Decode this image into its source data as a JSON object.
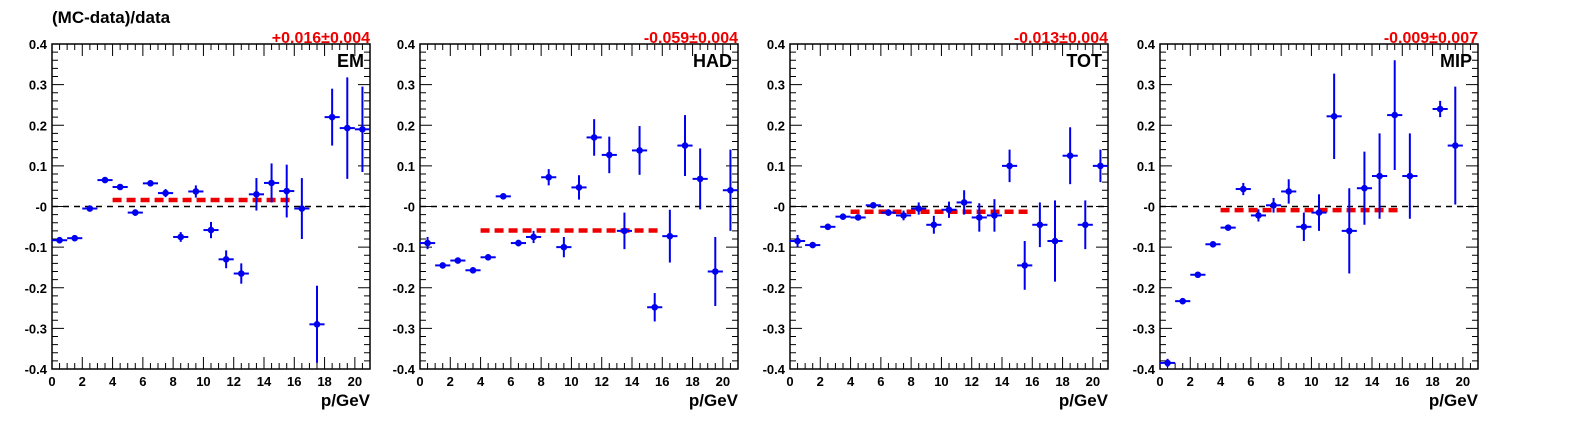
{
  "figure": {
    "title": "(MC-data)/data"
  },
  "chart_data": [
    {
      "type": "scatter",
      "panel_label": "EM",
      "fit_text": "+0.016±0.004",
      "fit_value": 0.016,
      "fit_range": [
        4,
        16
      ],
      "xlabel": "p/GeV",
      "ylabel": "",
      "xlim": [
        0,
        21
      ],
      "ylim": [
        -0.4,
        0.4
      ],
      "xticks": [
        "0",
        "2",
        "4",
        "6",
        "8",
        "10",
        "12",
        "14",
        "16",
        "18",
        "20"
      ],
      "yticks": [
        "-0.4",
        "-0.3",
        "-0.2",
        "-0.1",
        "-0",
        "0.1",
        "0.2",
        "0.3",
        "0.4"
      ],
      "reference_line": 0,
      "grid": false,
      "points": [
        {
          "x": 0.5,
          "y": -0.083,
          "err": 0.008
        },
        {
          "x": 1.5,
          "y": -0.078,
          "err": 0.006
        },
        {
          "x": 2.5,
          "y": -0.005,
          "err": 0.005
        },
        {
          "x": 3.5,
          "y": 0.065,
          "err": 0.006
        },
        {
          "x": 4.5,
          "y": 0.048,
          "err": 0.007
        },
        {
          "x": 5.5,
          "y": -0.015,
          "err": 0.008
        },
        {
          "x": 6.5,
          "y": 0.057,
          "err": 0.007
        },
        {
          "x": 7.5,
          "y": 0.033,
          "err": 0.01
        },
        {
          "x": 8.5,
          "y": -0.075,
          "err": 0.012
        },
        {
          "x": 9.5,
          "y": 0.037,
          "err": 0.015
        },
        {
          "x": 10.5,
          "y": -0.058,
          "err": 0.02
        },
        {
          "x": 11.5,
          "y": -0.13,
          "err": 0.022
        },
        {
          "x": 12.5,
          "y": -0.165,
          "err": 0.025
        },
        {
          "x": 13.5,
          "y": 0.03,
          "err": 0.04
        },
        {
          "x": 14.5,
          "y": 0.058,
          "err": 0.048
        },
        {
          "x": 15.5,
          "y": 0.038,
          "err": 0.065
        },
        {
          "x": 16.5,
          "y": -0.005,
          "err": 0.075
        },
        {
          "x": 17.5,
          "y": -0.29,
          "err": 0.095
        },
        {
          "x": 18.5,
          "y": 0.22,
          "err": 0.07
        },
        {
          "x": 19.5,
          "y": 0.193,
          "err": 0.125
        },
        {
          "x": 20.5,
          "y": 0.19,
          "err": 0.105
        }
      ]
    },
    {
      "type": "scatter",
      "panel_label": "HAD",
      "fit_text": "-0.059±0.004",
      "fit_value": -0.059,
      "fit_range": [
        4,
        16
      ],
      "xlabel": "p/GeV",
      "ylabel": "",
      "xlim": [
        0,
        21
      ],
      "ylim": [
        -0.4,
        0.4
      ],
      "xticks": [
        "0",
        "2",
        "4",
        "6",
        "8",
        "10",
        "12",
        "14",
        "16",
        "18",
        "20"
      ],
      "yticks": [
        "-0.4",
        "-0.3",
        "-0.2",
        "-0.1",
        "-0",
        "0.1",
        "0.2",
        "0.3",
        "0.4"
      ],
      "reference_line": 0,
      "grid": false,
      "points": [
        {
          "x": 0.5,
          "y": -0.09,
          "err": 0.015
        },
        {
          "x": 1.5,
          "y": -0.145,
          "err": 0.006
        },
        {
          "x": 2.5,
          "y": -0.133,
          "err": 0.006
        },
        {
          "x": 3.5,
          "y": -0.157,
          "err": 0.007
        },
        {
          "x": 4.5,
          "y": -0.125,
          "err": 0.006
        },
        {
          "x": 5.5,
          "y": 0.025,
          "err": 0.006
        },
        {
          "x": 6.5,
          "y": -0.09,
          "err": 0.008
        },
        {
          "x": 7.5,
          "y": -0.075,
          "err": 0.015
        },
        {
          "x": 8.5,
          "y": 0.072,
          "err": 0.02
        },
        {
          "x": 9.5,
          "y": -0.1,
          "err": 0.025
        },
        {
          "x": 10.5,
          "y": 0.047,
          "err": 0.03
        },
        {
          "x": 11.5,
          "y": 0.17,
          "err": 0.045
        },
        {
          "x": 12.5,
          "y": 0.127,
          "err": 0.045
        },
        {
          "x": 13.5,
          "y": -0.06,
          "err": 0.045
        },
        {
          "x": 14.5,
          "y": 0.138,
          "err": 0.06
        },
        {
          "x": 15.5,
          "y": -0.248,
          "err": 0.035
        },
        {
          "x": 16.5,
          "y": -0.073,
          "err": 0.065
        },
        {
          "x": 17.5,
          "y": 0.15,
          "err": 0.075
        },
        {
          "x": 18.5,
          "y": 0.068,
          "err": 0.075
        },
        {
          "x": 19.5,
          "y": -0.16,
          "err": 0.085
        },
        {
          "x": 20.5,
          "y": 0.04,
          "err": 0.1
        }
      ]
    },
    {
      "type": "scatter",
      "panel_label": "TOT",
      "fit_text": "-0.013±0.004",
      "fit_value": -0.013,
      "fit_range": [
        4,
        16
      ],
      "xlabel": "p/GeV",
      "ylabel": "",
      "xlim": [
        0,
        21
      ],
      "ylim": [
        -0.4,
        0.4
      ],
      "xticks": [
        "0",
        "2",
        "4",
        "6",
        "8",
        "10",
        "12",
        "14",
        "16",
        "18",
        "20"
      ],
      "yticks": [
        "-0.4",
        "-0.3",
        "-0.2",
        "-0.1",
        "-0",
        "0.1",
        "0.2",
        "0.3",
        "0.4"
      ],
      "reference_line": 0,
      "grid": false,
      "points": [
        {
          "x": 0.5,
          "y": -0.085,
          "err": 0.015
        },
        {
          "x": 1.5,
          "y": -0.095,
          "err": 0.006
        },
        {
          "x": 2.5,
          "y": -0.05,
          "err": 0.005
        },
        {
          "x": 3.5,
          "y": -0.025,
          "err": 0.005
        },
        {
          "x": 4.5,
          "y": -0.027,
          "err": 0.006
        },
        {
          "x": 5.5,
          "y": 0.003,
          "err": 0.006
        },
        {
          "x": 6.5,
          "y": -0.015,
          "err": 0.008
        },
        {
          "x": 7.5,
          "y": -0.022,
          "err": 0.012
        },
        {
          "x": 8.5,
          "y": -0.005,
          "err": 0.015
        },
        {
          "x": 9.5,
          "y": -0.045,
          "err": 0.022
        },
        {
          "x": 10.5,
          "y": -0.008,
          "err": 0.02
        },
        {
          "x": 11.5,
          "y": 0.01,
          "err": 0.03
        },
        {
          "x": 12.5,
          "y": -0.027,
          "err": 0.035
        },
        {
          "x": 13.5,
          "y": -0.022,
          "err": 0.04
        },
        {
          "x": 14.5,
          "y": 0.1,
          "err": 0.04
        },
        {
          "x": 15.5,
          "y": -0.145,
          "err": 0.06
        },
        {
          "x": 16.5,
          "y": -0.045,
          "err": 0.055
        },
        {
          "x": 17.5,
          "y": -0.085,
          "err": 0.1
        },
        {
          "x": 18.5,
          "y": 0.125,
          "err": 0.07
        },
        {
          "x": 19.5,
          "y": -0.045,
          "err": 0.06
        },
        {
          "x": 20.5,
          "y": 0.1,
          "err": 0.04
        }
      ]
    },
    {
      "type": "scatter",
      "panel_label": "MIP",
      "fit_text": "-0.009±0.007",
      "fit_value": -0.009,
      "fit_range": [
        4,
        16
      ],
      "xlabel": "p/GeV",
      "ylabel": "",
      "xlim": [
        0,
        21
      ],
      "ylim": [
        -0.4,
        0.4
      ],
      "xticks": [
        "0",
        "2",
        "4",
        "6",
        "8",
        "10",
        "12",
        "14",
        "16",
        "18",
        "20"
      ],
      "yticks": [
        "-0.4",
        "-0.3",
        "-0.2",
        "-0.1",
        "-0",
        "0.1",
        "0.2",
        "0.3",
        "0.4"
      ],
      "reference_line": 0,
      "grid": false,
      "points": [
        {
          "x": 0.5,
          "y": -0.385,
          "err": 0.01
        },
        {
          "x": 1.5,
          "y": -0.233,
          "err": 0.006
        },
        {
          "x": 2.5,
          "y": -0.168,
          "err": 0.006
        },
        {
          "x": 3.5,
          "y": -0.093,
          "err": 0.006
        },
        {
          "x": 4.5,
          "y": -0.052,
          "err": 0.007
        },
        {
          "x": 5.5,
          "y": 0.043,
          "err": 0.015
        },
        {
          "x": 6.5,
          "y": -0.022,
          "err": 0.015
        },
        {
          "x": 7.5,
          "y": 0.003,
          "err": 0.018
        },
        {
          "x": 8.5,
          "y": 0.037,
          "err": 0.03
        },
        {
          "x": 9.5,
          "y": -0.05,
          "err": 0.035
        },
        {
          "x": 10.5,
          "y": -0.015,
          "err": 0.045
        },
        {
          "x": 11.5,
          "y": 0.222,
          "err": 0.105
        },
        {
          "x": 12.5,
          "y": -0.06,
          "err": 0.105
        },
        {
          "x": 13.5,
          "y": 0.045,
          "err": 0.09
        },
        {
          "x": 14.5,
          "y": 0.075,
          "err": 0.105
        },
        {
          "x": 15.5,
          "y": 0.225,
          "err": 0.135
        },
        {
          "x": 16.5,
          "y": 0.075,
          "err": 0.105
        },
        {
          "x": 18.5,
          "y": 0.24,
          "err": 0.02
        },
        {
          "x": 19.5,
          "y": 0.15,
          "err": 0.145
        }
      ]
    }
  ]
}
